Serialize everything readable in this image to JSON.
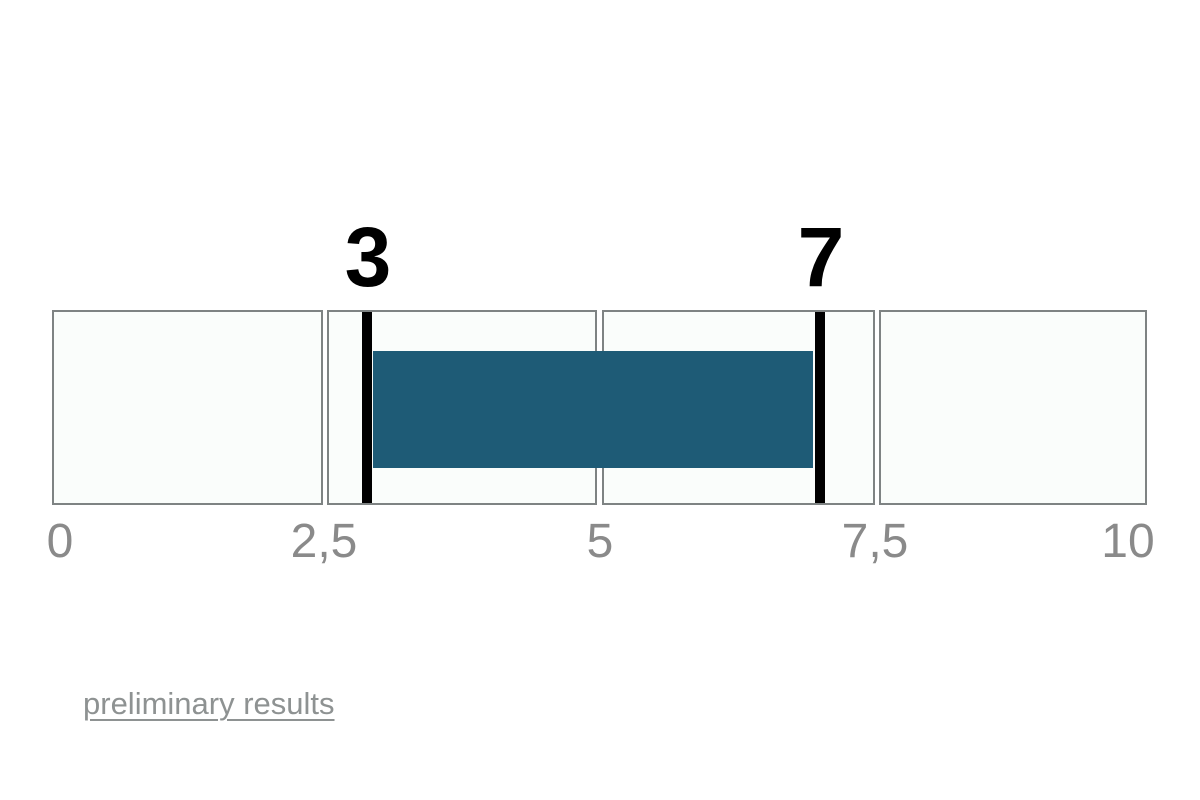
{
  "chart_data": {
    "type": "bar",
    "orientation": "horizontal",
    "title": "",
    "xlabel": "",
    "ylabel": "",
    "x_range": [
      0,
      10
    ],
    "tick_values": [
      0,
      2.5,
      5,
      7.5,
      10
    ],
    "tick_labels": [
      "0",
      "2,5",
      "5",
      "7,5",
      "10"
    ],
    "decimal_separator": ",",
    "segments": [
      {
        "from": 0,
        "to": 2.5
      },
      {
        "from": 2.5,
        "to": 5
      },
      {
        "from": 5,
        "to": 7.5
      },
      {
        "from": 7.5,
        "to": 10
      }
    ],
    "range": {
      "low": 3,
      "high": 7
    },
    "range_labels": {
      "low": "3",
      "high": "7"
    },
    "grid": false,
    "legend": false,
    "colors": {
      "bar": "#1e5b76",
      "marker": "#000000",
      "segment_fill": "#fafdfb",
      "segment_border": "#7e8383",
      "tick_text": "#8a8a8a",
      "range_label_text": "#000000"
    }
  },
  "footer": {
    "link_label": "preliminary results",
    "link_color": "#8e9292"
  }
}
